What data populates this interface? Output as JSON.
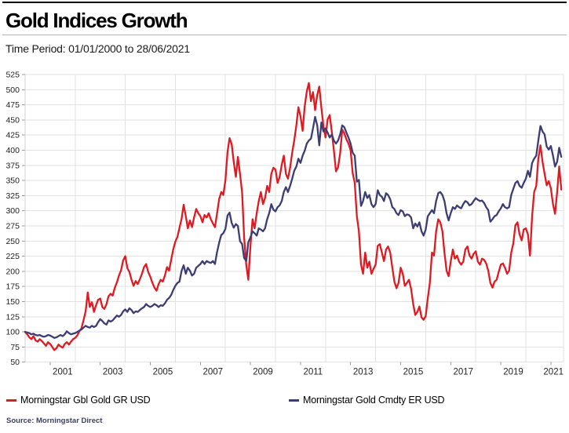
{
  "header": {
    "title": "Gold Indices Growth",
    "subtitle": "Time Period: 01/01/2000 to 28/06/2021"
  },
  "footer": {
    "source": "Source: Morningstar Direct"
  },
  "legend": [
    {
      "label": "Morningstar Gbl Gold GR USD",
      "color": "#e01a22"
    },
    {
      "label": "Morningstar Gold Cmdty ER USD",
      "color": "#3d3d73"
    }
  ],
  "chart_data": {
    "type": "line",
    "title": "Gold Indices Growth",
    "subtitle": "Time Period: 01/01/2000 to 28/06/2021",
    "xlabel": "",
    "ylabel": "",
    "x_start": 2000.0,
    "x_end": 2021.5,
    "x_interval": "monthly",
    "ylim": [
      50,
      525
    ],
    "y_tick_step": 25,
    "grid": true,
    "x_gridline_years": [
      2002,
      2004,
      2006,
      2008,
      2010,
      2012,
      2014,
      2016,
      2018,
      2020
    ],
    "x_tick_years": [
      2001,
      2003,
      2005,
      2007,
      2009,
      2011,
      2013,
      2015,
      2017,
      2019,
      2021
    ],
    "x_tick_labels": [
      "2001",
      "2003",
      "2005",
      "2007",
      "2009",
      "2011",
      "2013",
      "2015",
      "2017",
      "2019",
      "2021"
    ],
    "legend_position": "bottom",
    "series": [
      {
        "name": "Morningstar Gbl Gold GR USD",
        "color": "#e01a22",
        "start": "2000-01",
        "values": [
          100,
          96,
          91,
          88,
          93,
          86,
          84,
          88,
          85,
          81,
          77,
          83,
          80,
          75,
          70,
          73,
          79,
          76,
          74,
          80,
          83,
          79,
          84,
          88,
          90,
          94,
          101,
          106,
          119,
          134,
          165,
          141,
          149,
          133,
          144,
          153,
          155,
          141,
          138,
          146,
          159,
          163,
          160,
          173,
          182,
          193,
          202,
          218,
          225,
          205,
          199,
          186,
          176,
          184,
          179,
          187,
          196,
          207,
          212,
          199,
          191,
          181,
          173,
          168,
          179,
          186,
          183,
          193,
          207,
          201,
          219,
          236,
          249,
          257,
          272,
          287,
          310,
          291,
          271,
          284,
          273,
          289,
          303,
          296,
          291,
          281,
          293,
          289,
          296,
          286,
          279,
          273,
          296,
          319,
          331,
          326,
          350,
          397,
          420,
          410,
          381,
          356,
          389,
          361,
          330,
          255,
          210,
          186,
          242,
          286,
          271,
          296,
          316,
          331,
          311,
          321,
          341,
          331,
          361,
          371,
          368,
          346,
          356,
          376,
          391,
          361,
          353,
          371,
          396,
          416,
          441,
          471,
          456,
          432,
          472,
          497,
          511,
          481,
          496,
          466,
          491,
          505,
          470,
          440,
          421,
          451,
          458,
          430,
          400,
          365,
          372,
          395,
          434,
          428,
          418,
          411,
          400,
          362,
          346,
          291,
          266,
          211,
          196,
          231,
          206,
          216,
          196,
          204,
          211,
          242,
          245,
          231,
          217,
          236,
          241,
          231,
          206,
          183,
          172,
          181,
          206,
          196,
          176,
          181,
          186,
          171,
          146,
          128,
          133,
          142,
          124,
          120,
          126,
          156,
          181,
          231,
          226,
          266,
          286,
          281,
          266,
          231,
          201,
          192,
          216,
          236,
          221,
          226,
          216,
          211,
          216,
          236,
          241,
          226,
          221,
          229,
          233,
          216,
          211,
          221,
          219,
          213,
          201,
          181,
          173,
          183,
          186,
          199,
          211,
          213,
          206,
          196,
          201,
          231,
          246,
          276,
          281,
          261,
          251,
          269,
          271,
          261,
          226,
          291,
          331,
          341,
          386,
          408,
          381,
          361,
          342,
          349,
          337,
          311,
          295,
          331,
          373,
          335
        ]
      },
      {
        "name": "Morningstar Gold Cmdty ER USD",
        "color": "#3d3d73",
        "start": "2000-01",
        "values": [
          100,
          99,
          98,
          96,
          97,
          95,
          94,
          95,
          93,
          92,
          93,
          95,
          94,
          92,
          90,
          91,
          93,
          95,
          93,
          96,
          101,
          98,
          96,
          97,
          98,
          100,
          102,
          104,
          107,
          110,
          108,
          107,
          110,
          108,
          110,
          116,
          121,
          118,
          114,
          112,
          119,
          117,
          119,
          123,
          127,
          125,
          128,
          134,
          137,
          133,
          139,
          136,
          131,
          134,
          133,
          136,
          139,
          141,
          146,
          143,
          141,
          143,
          146,
          144,
          141,
          144,
          143,
          147,
          153,
          156,
          161,
          169,
          176,
          181,
          183,
          201,
          210,
          196,
          206,
          201,
          193,
          196,
          206,
          209,
          212,
          217,
          212,
          217,
          215,
          214,
          217,
          212,
          232,
          247,
          260,
          263,
          270,
          292,
          297,
          280,
          272,
          278,
          275,
          250,
          245,
          222,
          217,
          248,
          256,
          266,
          263,
          259,
          271,
          269,
          266,
          271,
          286,
          296,
          311,
          302,
          299,
          306,
          309,
          316,
          331,
          339,
          331,
          341,
          353,
          366,
          373,
          386,
          379,
          391,
          399,
          411,
          416,
          419,
          436,
          455,
          441,
          408,
          446,
          431,
          436,
          429,
          421,
          426,
          416,
          411,
          416,
          426,
          441,
          438,
          429,
          421,
          411,
          396,
          391,
          348,
          351,
          308,
          316,
          331,
          321,
          326,
          311,
          306,
          311,
          334,
          326,
          323,
          316,
          329,
          326,
          319,
          306,
          303,
          296,
          293,
          301,
          299,
          291,
          294,
          293,
          289,
          271,
          279,
          274,
          281,
          266,
          259,
          269,
          291,
          296,
          301,
          296,
          316,
          329,
          331,
          326,
          316,
          296,
          284,
          296,
          306,
          303,
          309,
          306,
          304,
          311,
          316,
          314,
          309,
          311,
          316,
          321,
          318,
          316,
          317,
          313,
          306,
          301,
          282,
          286,
          291,
          293,
          299,
          304,
          311,
          306,
          304,
          306,
          326,
          336,
          346,
          349,
          341,
          338,
          346,
          353,
          366,
          356,
          379,
          386,
          391,
          416,
          440,
          431,
          426,
          406,
          401,
          407,
          391,
          373,
          381,
          404,
          389
        ]
      }
    ]
  }
}
